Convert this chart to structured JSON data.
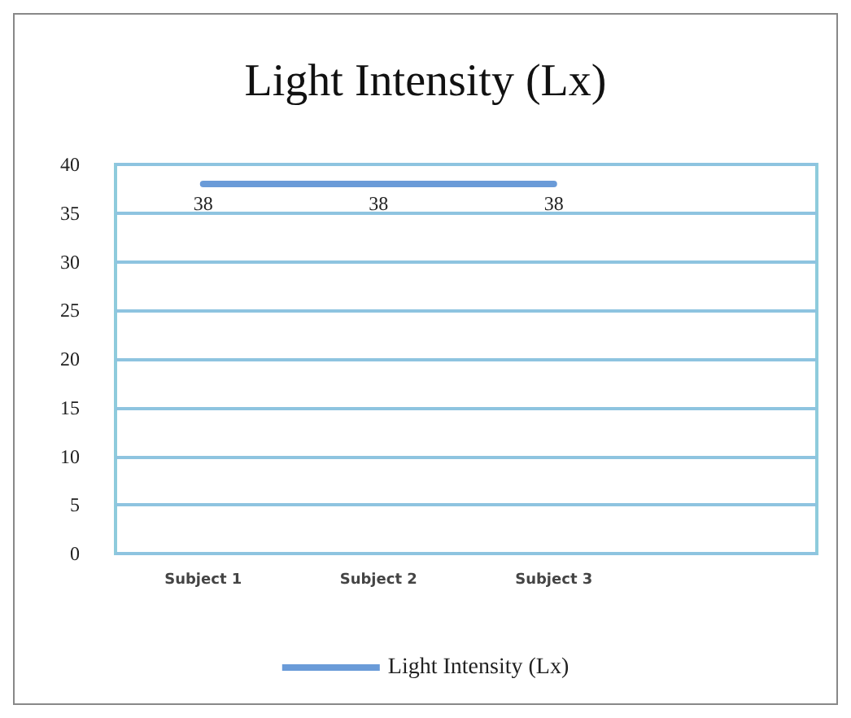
{
  "chart_data": {
    "type": "line",
    "title": "Light Intensity (Lx)",
    "categories": [
      "Subject 1",
      "Subject 2",
      "Subject 3",
      null
    ],
    "series": [
      {
        "name": "Light Intensity (Lx)",
        "color": "#6a9bd8",
        "values": [
          38,
          38,
          38,
          null
        ]
      }
    ],
    "ylim": [
      0,
      40
    ],
    "yticks": [
      0,
      5,
      10,
      15,
      20,
      25,
      30,
      35,
      40
    ],
    "grid": "y",
    "legend": "bottom",
    "data_labels": true,
    "marker": "none",
    "line_style": "solid"
  }
}
